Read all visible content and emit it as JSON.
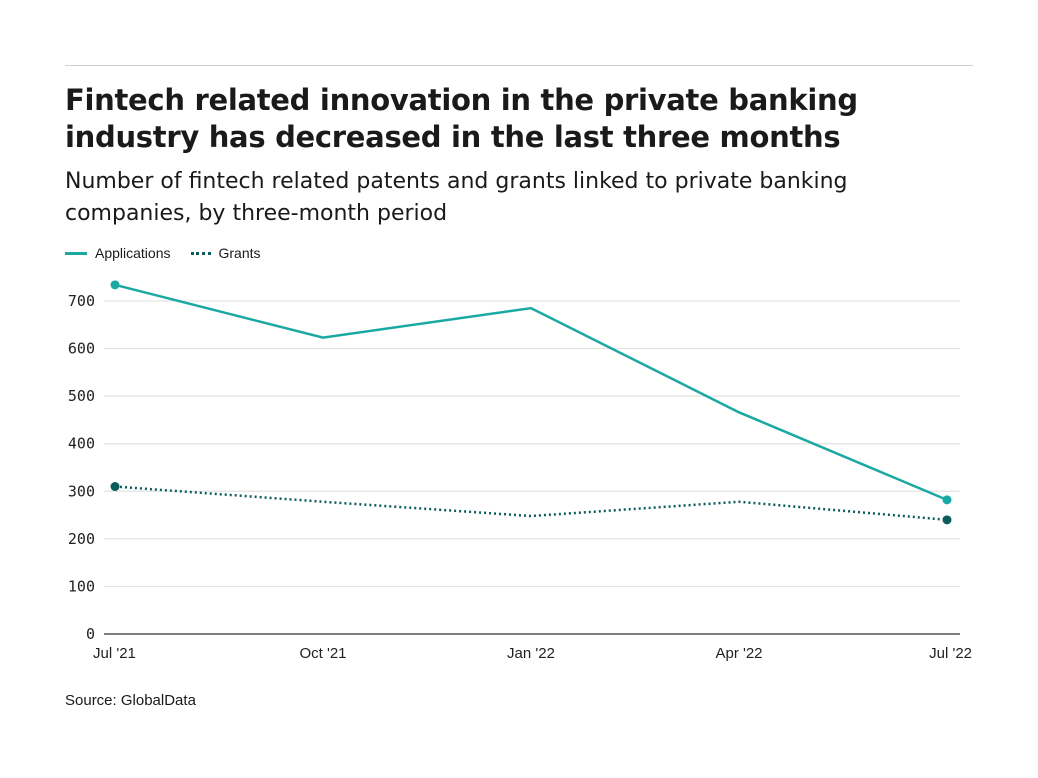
{
  "title": "Fintech related innovation in the private banking industry has decreased in the last three months",
  "subtitle": "Number of fintech related patents and grants linked to private banking companies, by three-month period",
  "source": "Source: GlobalData",
  "chart_data": {
    "type": "line",
    "categories": [
      "Jul '21",
      "Oct '21",
      "Jan '22",
      "Apr '22",
      "Jul '22"
    ],
    "series": [
      {
        "name": "Applications",
        "values": [
          734,
          623,
          685,
          466,
          282
        ],
        "color": "#1aa8a3",
        "style": "solid"
      },
      {
        "name": "Grants",
        "values": [
          310,
          278,
          248,
          278,
          240
        ],
        "color": "#0d5c5c",
        "style": "dotted"
      }
    ],
    "yticks": [
      0,
      100,
      200,
      300,
      400,
      500,
      600,
      700
    ],
    "ylim": [
      0,
      700
    ],
    "grid": true,
    "legend": "top-left"
  }
}
